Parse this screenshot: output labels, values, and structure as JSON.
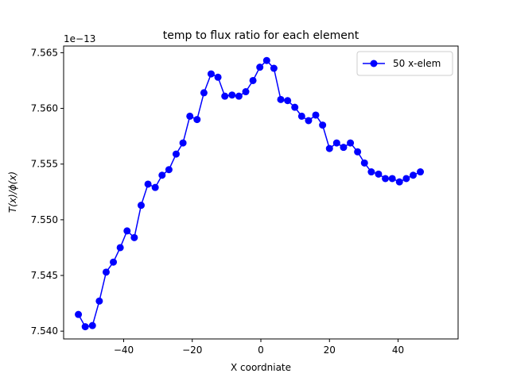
{
  "chart_data": {
    "type": "line",
    "title": "temp to flux ratio for each element",
    "xlabel": "X coordniate",
    "ylabel": "T(x)/ϕ(x)",
    "y_offset_label": "1e−13",
    "xlim": [
      -57.5,
      57.5
    ],
    "ylim": [
      7.5393,
      7.5656
    ],
    "x_ticks": [
      -40,
      -20,
      0,
      20,
      40
    ],
    "x_tick_labels": [
      "−40",
      "−20",
      "0",
      "20",
      "40"
    ],
    "y_ticks": [
      7.54,
      7.545,
      7.55,
      7.555,
      7.56,
      7.565
    ],
    "y_tick_labels": [
      "7.540",
      "7.545",
      "7.550",
      "7.555",
      "7.560",
      "7.565"
    ],
    "grid": false,
    "legend_position": "top-right",
    "series": [
      {
        "name": "50 x-elem",
        "color": "#0000ff",
        "marker": "circle",
        "x": [
          -53.2,
          -51.2,
          -49.1,
          -47.1,
          -45.1,
          -43.0,
          -41.0,
          -39.0,
          -36.9,
          -34.9,
          -32.9,
          -30.8,
          -28.8,
          -26.8,
          -24.7,
          -22.7,
          -20.7,
          -18.6,
          -16.6,
          -14.5,
          -12.5,
          -10.5,
          -8.4,
          -6.4,
          -4.4,
          -2.3,
          -0.3,
          1.7,
          3.8,
          5.8,
          7.8,
          9.9,
          11.9,
          13.9,
          16.0,
          18.0,
          20.0,
          22.1,
          24.1,
          26.1,
          28.2,
          30.2,
          32.2,
          34.3,
          36.3,
          38.3,
          40.4,
          42.4,
          44.4,
          46.5
        ],
        "values": [
          7.5415,
          7.5404,
          7.5405,
          7.5427,
          7.5453,
          7.5462,
          7.5475,
          7.549,
          7.5484,
          7.5513,
          7.5532,
          7.5529,
          7.554,
          7.5545,
          7.5559,
          7.5569,
          7.5593,
          7.559,
          7.5614,
          7.5631,
          7.5628,
          7.5611,
          7.5612,
          7.5611,
          7.5615,
          7.5625,
          7.5637,
          7.5643,
          7.5636,
          7.5608,
          7.5607,
          7.5601,
          7.5593,
          7.5589,
          7.5594,
          7.5585,
          7.5564,
          7.5569,
          7.5565,
          7.5569,
          7.5561,
          7.5551,
          7.5543,
          7.5541,
          7.5537,
          7.5537,
          7.5534,
          7.5537,
          7.554,
          7.5543
        ]
      }
    ]
  }
}
